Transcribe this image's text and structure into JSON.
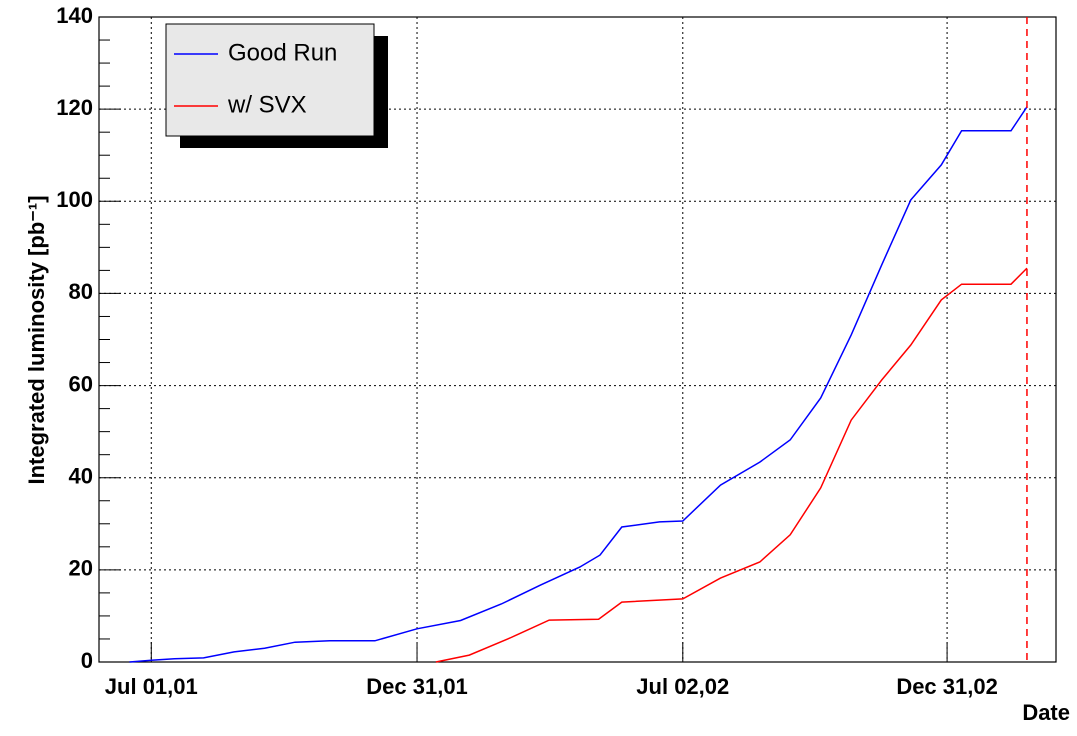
{
  "chart_data": {
    "type": "line",
    "x_label": "Date",
    "y_label": "Integrated luminosity [pb⁻¹]",
    "xlim": [
      "2001-05-26",
      "2003-03-16"
    ],
    "xticks": [
      {
        "value": "2001-07-01",
        "label": "Jul 01,01"
      },
      {
        "value": "2001-12-31",
        "label": "Dec 31,01"
      },
      {
        "value": "2002-07-02",
        "label": "Jul 02,02"
      },
      {
        "value": "2002-12-31",
        "label": "Dec 31,02"
      }
    ],
    "ylim": [
      0,
      140
    ],
    "yticks": [
      0,
      20,
      40,
      60,
      80,
      100,
      120,
      140
    ],
    "grid": true,
    "legend": "top-left",
    "vline": {
      "x": "2003-02-24",
      "color": "#ff0000"
    },
    "series": [
      {
        "name": "Good Run",
        "color": "#0000ff",
        "x": [
          "2001-06-16",
          "2001-07-01",
          "2001-07-17",
          "2001-08-06",
          "2001-08-27",
          "2001-09-17",
          "2001-10-08",
          "2001-11-01",
          "2001-12-02",
          "2001-12-31",
          "2002-01-30",
          "2002-02-27",
          "2002-03-26",
          "2002-04-22",
          "2002-05-06",
          "2002-05-21",
          "2002-06-16",
          "2002-07-02",
          "2002-07-28",
          "2002-08-24",
          "2002-09-14",
          "2002-10-05",
          "2002-10-26",
          "2002-11-16",
          "2002-12-06",
          "2002-12-27",
          "2003-01-10",
          "2003-02-13",
          "2003-02-24"
        ],
        "values": [
          0,
          0.4,
          0.7,
          0.9,
          2.2,
          3,
          4.3,
          4.6,
          4.6,
          7.2,
          9,
          12.6,
          16.7,
          20.6,
          23.2,
          29.3,
          30.4,
          30.6,
          38.4,
          43.4,
          48.2,
          57.3,
          71,
          86.2,
          100.3,
          107.9,
          115.3,
          115.3,
          120.5
        ]
      },
      {
        "name": "w/ SVX",
        "color": "#ff0000",
        "x": [
          "2002-01-13",
          "2002-02-05",
          "2002-03-05",
          "2002-04-01",
          "2002-05-05",
          "2002-05-21",
          "2002-07-02",
          "2002-07-28",
          "2002-08-24",
          "2002-09-14",
          "2002-10-05",
          "2002-10-26",
          "2002-11-16",
          "2002-12-06",
          "2002-12-27",
          "2003-01-10",
          "2003-02-13",
          "2003-02-24"
        ],
        "values": [
          0,
          1.5,
          5.2,
          9.1,
          9.3,
          13,
          13.7,
          18.2,
          21.7,
          27.6,
          37.8,
          52.5,
          61.2,
          68.8,
          78.6,
          82,
          82,
          85.5
        ]
      }
    ]
  }
}
